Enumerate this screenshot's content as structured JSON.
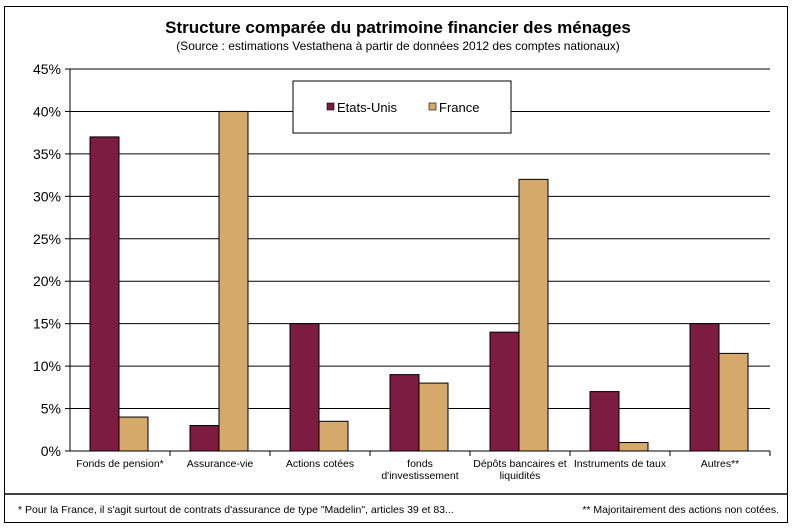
{
  "chart_data": {
    "type": "bar",
    "title": "Structure comparée du patrimoine financier des ménages",
    "subtitle": "(Source : estimations Vestathena à partir de données 2012 des comptes nationaux)",
    "categories": [
      [
        "Fonds de pension*"
      ],
      [
        "Assurance-vie"
      ],
      [
        "Actions cotées"
      ],
      [
        "fonds",
        "d'investissement"
      ],
      [
        "Dépôts bancaires et",
        "liquidités"
      ],
      [
        "Instruments de taux"
      ],
      [
        "Autres**"
      ]
    ],
    "series": [
      {
        "name": "Etats-Unis",
        "color": "#7b1c40",
        "values": [
          37,
          3,
          15,
          9,
          14,
          7,
          15
        ]
      },
      {
        "name": "France",
        "color": "#d4a96a",
        "values": [
          4,
          40,
          3.5,
          8,
          32,
          1,
          11.5
        ]
      }
    ],
    "yticks": [
      "0%",
      "5%",
      "10%",
      "15%",
      "20%",
      "25%",
      "30%",
      "35%",
      "40%",
      "45%"
    ],
    "ylim": [
      0,
      45
    ],
    "ystep": 5,
    "grid": true,
    "legend_position": "top-center"
  },
  "footnotes": {
    "left": "* Pour la France, il s'agit surtout de contrats d'assurance de type \"Madelin\", articles 39 et 83...",
    "right": "** Majoritairement des actions non cotées."
  }
}
